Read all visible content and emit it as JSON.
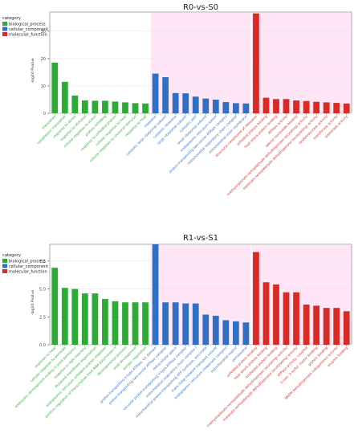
{
  "colors": {
    "biological_process": "#2eaa36",
    "cellular_component": "#2f6fc4",
    "molecular_function": "#d92b26",
    "highlight": "#ffd2ee"
  },
  "chart_data": [
    {
      "type": "bar",
      "title": "R0-vs-S0",
      "ylabel": "-log10 Pvalue",
      "ylim": [
        0,
        37
      ],
      "yticks": [
        0,
        10,
        20,
        30
      ],
      "grid": true,
      "legend": {
        "title": "category",
        "placement": "left",
        "entries": [
          {
            "key": "biological_process",
            "label": "biological_process"
          },
          {
            "key": "cellular_component",
            "label": "cellular_component"
          },
          {
            "key": "molecular_function",
            "label": "molecular_function"
          }
        ]
      },
      "highlighted": [
        "cellular_component",
        "molecular_function"
      ],
      "categories": [
        "translation",
        "cytoplasmic translation",
        "response to stress",
        "response to stimulus",
        "cellular response to stress",
        "protein refolding",
        "response to unfolded protein",
        "cellular response to heat",
        "cellular response to chemical stimulus",
        "response to heat",
        "ribosome",
        "cytosolic large ribosomal subunit",
        "cytosolic ribosome",
        "large ribosomal subunit",
        "cytosolic part",
        "small ribosomal subunit",
        "endoplasmic reticulum lumen",
        "proton-transporting two-sector ATPase complex",
        "mitochondrial respiratory chain complex",
        "mitochondrial inner membrane",
        "structural constituent of ribosome",
        "unfolded protein binding",
        "heat shock protein binding",
        "ATPase activity",
        "adenyl nucleotide binding",
        "methylmalonate-semialdehyde dehydrogenase (acylating) activity",
        "malonate-semialdehyde dehydrogenase (acetylating) activity",
        "oxidoreductase activity",
        "transferase activity",
        "isomerase activity"
      ],
      "groups": [
        "biological_process",
        "biological_process",
        "biological_process",
        "biological_process",
        "biological_process",
        "biological_process",
        "biological_process",
        "biological_process",
        "biological_process",
        "biological_process",
        "cellular_component",
        "cellular_component",
        "cellular_component",
        "cellular_component",
        "cellular_component",
        "cellular_component",
        "cellular_component",
        "cellular_component",
        "cellular_component",
        "cellular_component",
        "molecular_function",
        "molecular_function",
        "molecular_function",
        "molecular_function",
        "molecular_function",
        "molecular_function",
        "molecular_function",
        "molecular_function",
        "molecular_function",
        "molecular_function"
      ],
      "values": [
        18.5,
        11.5,
        6.5,
        4.7,
        4.6,
        4.6,
        4.3,
        4.0,
        3.7,
        3.6,
        14.5,
        13.2,
        7.4,
        7.3,
        6.1,
        5.4,
        5.0,
        4.1,
        3.7,
        3.6,
        36.5,
        5.7,
        5.2,
        5.2,
        4.7,
        4.5,
        4.2,
        4.0,
        3.8,
        3.6
      ]
    },
    {
      "type": "bar",
      "title": "R1-vs-S1",
      "ylabel": "-log10 Pvalue",
      "ylim": [
        0,
        9
      ],
      "yticks": [
        0.0,
        2.5,
        5.0,
        7.5
      ],
      "grid": true,
      "legend": {
        "title": "category",
        "placement": "left",
        "entries": [
          {
            "key": "biological_process",
            "label": "biological_process"
          },
          {
            "key": "cellular_component",
            "label": "cellular_component"
          },
          {
            "key": "molecular_function",
            "label": "molecular_function"
          }
        ]
      },
      "highlighted": [
        "cellular_component",
        "molecular_function"
      ],
      "categories": [
        "response to heat",
        "cellular response to peroxide",
        "embryonic development ending in seed dormancy",
        "response to light intensity",
        "thylakoid membrane organization",
        "endoplasmic reticulum unfolded protein response",
        "positive regulation of transcription from RNA polymerase II",
        "developmental process",
        "seed development",
        "aerobic respiration",
        "proton-transporting V-type ATPase, V1 domain",
        "proton-transporting two-sector ATPase complex",
        "extracellular space",
        "vacuolar proton-transporting V-type ATPase complex",
        "mitochondrial respiratory chain complex I",
        "mitochondrial proton-transporting ATP synthase, succinate",
        "trans-Golgi network transport vesicle",
        "endoplasmic reticulum chaperone complex",
        "mitochondrial matrix",
        "peroxisome",
        "unfolded protein binding",
        "heat shock protein binding",
        "misfolded protein binding",
        "methylmalonate-semialdehyde dehydrogenase (acylating) activity",
        "malonate-semialdehyde dehydrogenase (acetylating) activity",
        "ATPase activity, coupled",
        "2-iron, 2-sulfur cluster binding",
        "protein binding",
        "NADH dehydrogenase (ubiquinone) activity",
        "enzyme binding"
      ],
      "groups": [
        "biological_process",
        "biological_process",
        "biological_process",
        "biological_process",
        "biological_process",
        "biological_process",
        "biological_process",
        "biological_process",
        "biological_process",
        "biological_process",
        "cellular_component",
        "cellular_component",
        "cellular_component",
        "cellular_component",
        "cellular_component",
        "cellular_component",
        "cellular_component",
        "cellular_component",
        "cellular_component",
        "cellular_component",
        "molecular_function",
        "molecular_function",
        "molecular_function",
        "molecular_function",
        "molecular_function",
        "molecular_function",
        "molecular_function",
        "molecular_function",
        "molecular_function",
        "molecular_function"
      ],
      "values": [
        6.9,
        5.1,
        5.0,
        4.6,
        4.6,
        4.1,
        3.9,
        3.8,
        3.8,
        3.8,
        9.0,
        3.8,
        3.8,
        3.7,
        3.7,
        2.7,
        2.6,
        2.2,
        2.1,
        2.0,
        8.3,
        5.6,
        5.4,
        4.7,
        4.7,
        3.6,
        3.5,
        3.3,
        3.3,
        3.0
      ]
    }
  ]
}
